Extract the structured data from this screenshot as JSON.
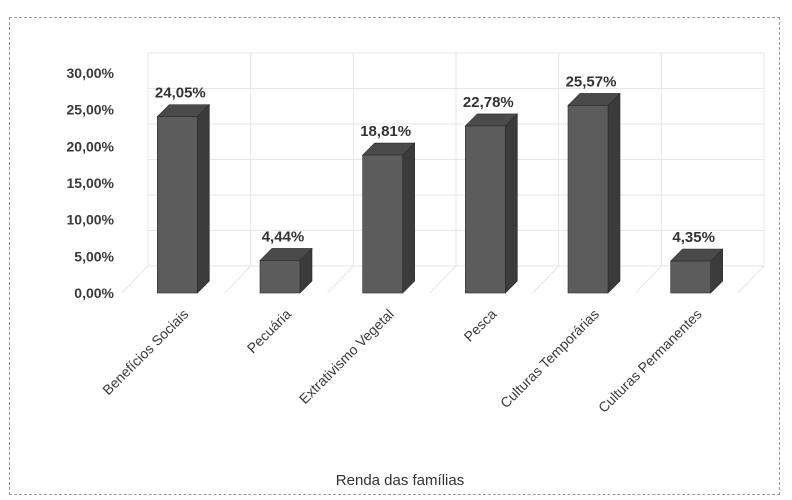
{
  "chart_data": {
    "type": "bar",
    "title": "",
    "xlabel": "Renda das famílias",
    "ylabel": "",
    "categories": [
      "Benefícios Sociais",
      "Pecuária",
      "Extrativismo Vegetal",
      "Pesca",
      "Culturas Temporárias",
      "Culturas Permanentes"
    ],
    "values": [
      24.05,
      4.44,
      18.81,
      22.78,
      25.57,
      4.35
    ],
    "data_labels": [
      "24,05%",
      "4,44%",
      "18,81%",
      "22,78%",
      "25,57%",
      "4,35%"
    ],
    "ylim": [
      0,
      30
    ],
    "yticks": [
      0,
      5,
      10,
      15,
      20,
      25,
      30
    ],
    "ytick_labels": [
      "0,00%",
      "5,00%",
      "10,00%",
      "15,00%",
      "20,00%",
      "25,00%",
      "30,00%"
    ],
    "grid": true,
    "legend": "none",
    "style": "3d-column",
    "colors": {
      "bar_front": "#5c5c5c",
      "bar_side": "#3b3b3b",
      "bar_top": "#4a4a4a",
      "grid": "#e6e6e6"
    }
  }
}
